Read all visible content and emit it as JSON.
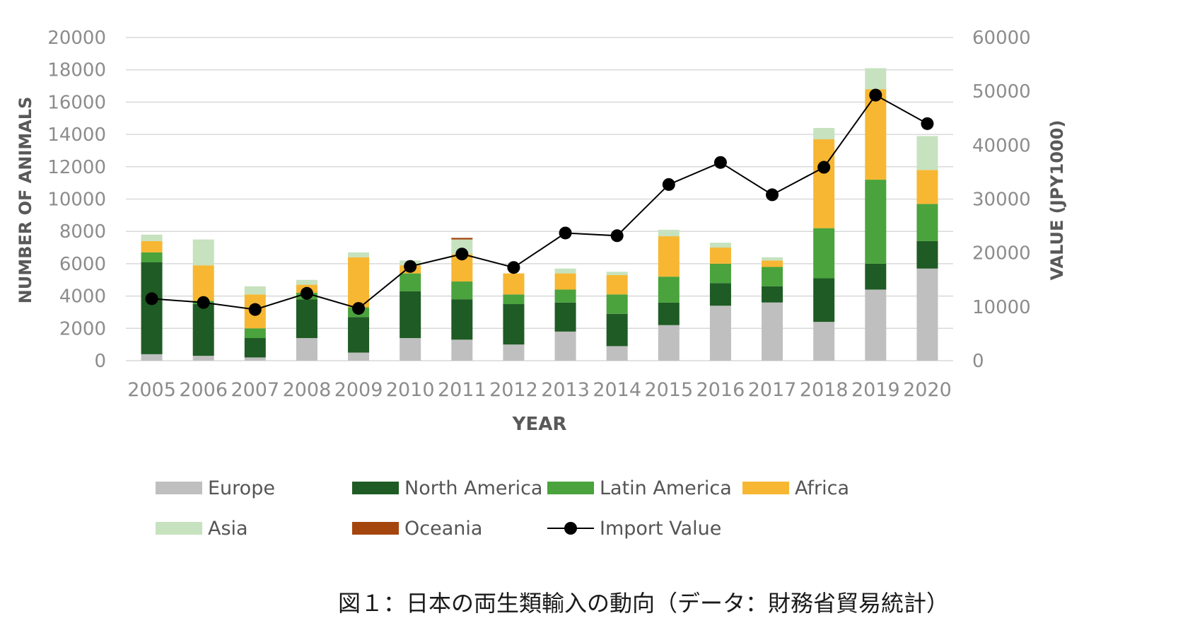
{
  "chart_data": {
    "type": "bar",
    "stacked": true,
    "xlabel": "YEAR",
    "ylabel": "NUMBER OF ANIMALS",
    "y2label": "VALUE (JPY1000)",
    "ylim": [
      0,
      20000
    ],
    "y2lim": [
      0,
      60000
    ],
    "yticks": [
      "0",
      "2000",
      "4000",
      "6000",
      "8000",
      "10000",
      "12000",
      "14000",
      "16000",
      "18000",
      "20000"
    ],
    "y2ticks": [
      "0",
      "10000",
      "20000",
      "30000",
      "40000",
      "50000",
      "60000"
    ],
    "categories": [
      "2005",
      "2006",
      "2007",
      "2008",
      "2009",
      "2010",
      "2011",
      "2012",
      "2013",
      "2014",
      "2015",
      "2016",
      "2017",
      "2018",
      "2019",
      "2020"
    ],
    "series": [
      {
        "name": "Europe",
        "color": "#bfbfbf",
        "values": [
          400,
          300,
          200,
          1400,
          500,
          1400,
          1300,
          1000,
          1800,
          900,
          2200,
          3400,
          3600,
          2400,
          4400,
          5700
        ]
      },
      {
        "name": "North America",
        "color": "#1f5b24",
        "values": [
          5700,
          3200,
          1200,
          2400,
          2200,
          2900,
          2500,
          2500,
          1800,
          2000,
          1400,
          1400,
          1000,
          2700,
          1600,
          1700
        ]
      },
      {
        "name": "Latin America",
        "color": "#4aa33c",
        "values": [
          600,
          200,
          600,
          400,
          600,
          1100,
          1100,
          600,
          800,
          1200,
          1600,
          1200,
          1200,
          3100,
          5200,
          2300
        ]
      },
      {
        "name": "Africa",
        "color": "#f7b733",
        "values": [
          700,
          2200,
          2100,
          500,
          3100,
          500,
          1700,
          1300,
          1000,
          1200,
          2500,
          1000,
          400,
          5500,
          5600,
          2100
        ]
      },
      {
        "name": "Asia",
        "color": "#c6e2bf",
        "values": [
          400,
          1600,
          500,
          300,
          300,
          300,
          900,
          0,
          300,
          200,
          400,
          300,
          200,
          700,
          1300,
          2100
        ]
      },
      {
        "name": "Oceania",
        "color": "#a4450e",
        "values": [
          0,
          0,
          0,
          0,
          0,
          0,
          100,
          0,
          0,
          0,
          0,
          0,
          0,
          0,
          0,
          0
        ]
      }
    ],
    "line_series": {
      "name": "Import Value",
      "axis": "right",
      "color": "#000000",
      "values": [
        11500,
        10800,
        9500,
        12500,
        9700,
        17500,
        19800,
        17300,
        23700,
        23200,
        32700,
        36800,
        30800,
        35900,
        49300,
        44000
      ]
    },
    "legend": [
      "Europe",
      "North America",
      "Latin America",
      "Africa",
      "Asia",
      "Oceania",
      "Import Value"
    ]
  },
  "caption": "図１：日本の両生類輸入の動向（データ：財務省貿易統計）"
}
